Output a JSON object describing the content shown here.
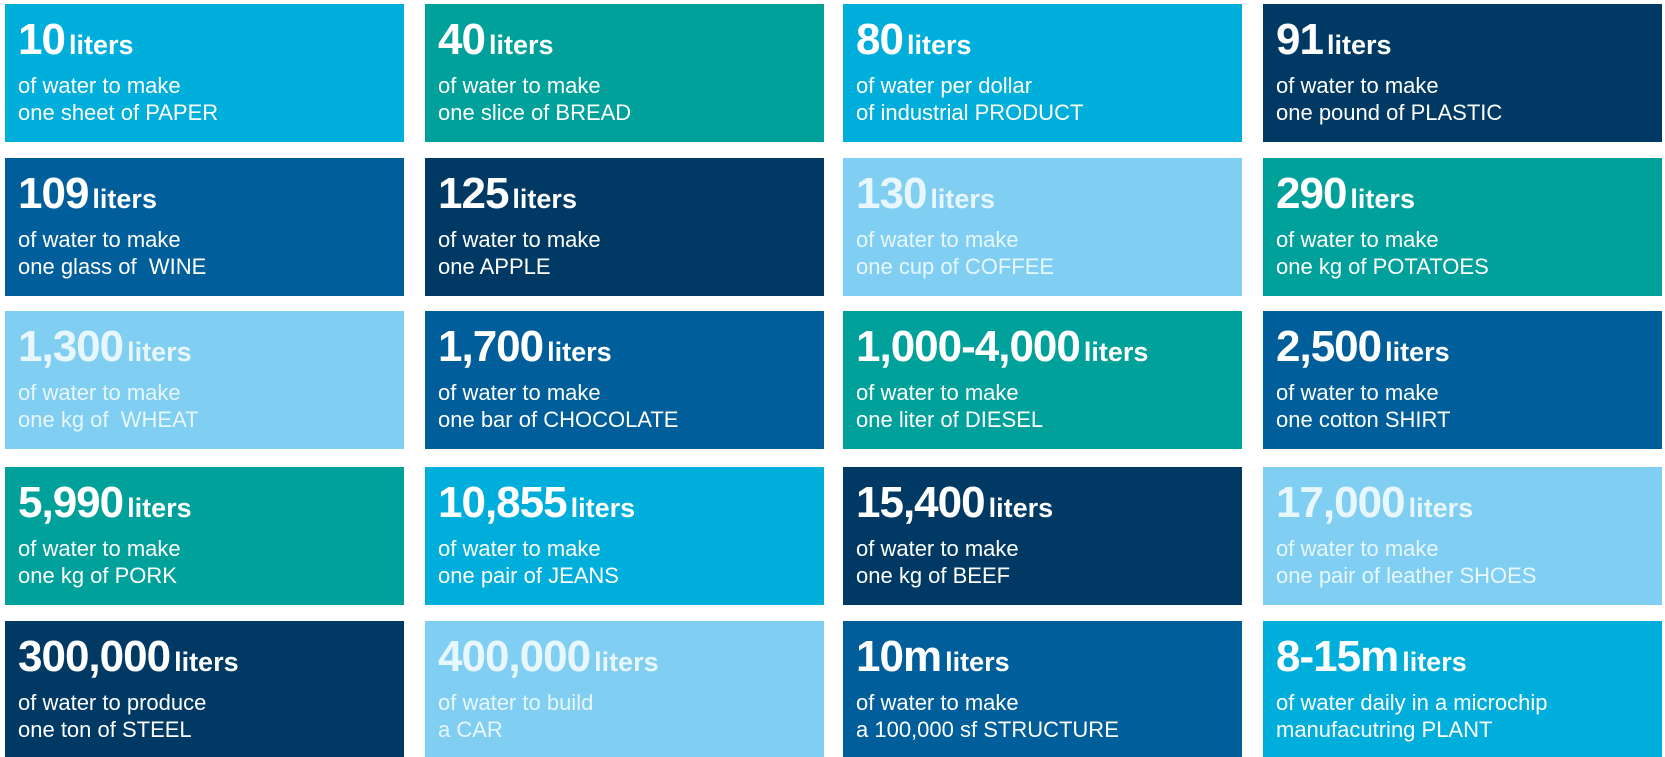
{
  "tiles": [
    {
      "number": "10",
      "unit": "liters",
      "line1": "of water to make",
      "line2": "one sheet of PAPER"
    },
    {
      "number": "40",
      "unit": "liters",
      "line1": "of water to make",
      "line2": "one slice of BREAD"
    },
    {
      "number": "80",
      "unit": "liters",
      "line1": "of water per dollar",
      "line2": "of industrial PRODUCT"
    },
    {
      "number": "91",
      "unit": "liters",
      "line1": "of water to make",
      "line2": "one pound of PLASTIC"
    },
    {
      "number": "109",
      "unit": "liters",
      "line1": "of water to make",
      "line2": "one glass of  WINE"
    },
    {
      "number": "125",
      "unit": "liters",
      "line1": "of water to make",
      "line2": "one APPLE"
    },
    {
      "number": "130",
      "unit": "liters",
      "line1": "of water to make",
      "line2": "one cup of COFFEE"
    },
    {
      "number": "290",
      "unit": "liters",
      "line1": "of water to make",
      "line2": "one kg of POTATOES"
    },
    {
      "number": "1,300",
      "unit": "liters",
      "line1": "of water to make",
      "line2": "one kg of  WHEAT"
    },
    {
      "number": "1,700",
      "unit": "liters",
      "line1": "of water to make",
      "line2": "one bar of CHOCOLATE"
    },
    {
      "number": "1,000-4,000",
      "unit": "liters",
      "line1": "of water to make",
      "line2": "one liter of DIESEL"
    },
    {
      "number": "2,500",
      "unit": "liters",
      "line1": "of water to make",
      "line2": "one cotton SHIRT"
    },
    {
      "number": "5,990",
      "unit": "liters",
      "line1": "of water to make",
      "line2": "one kg of PORK"
    },
    {
      "number": "10,855",
      "unit": "liters",
      "line1": "of water to make",
      "line2": "one pair of JEANS"
    },
    {
      "number": "15,400",
      "unit": "liters",
      "line1": "of water to make",
      "line2": "one kg of BEEF"
    },
    {
      "number": "17,000",
      "unit": "liters",
      "line1": "of water to make",
      "line2": "one pair of leather SHOES"
    },
    {
      "number": "300,000",
      "unit": "liters",
      "line1": "of water to produce",
      "line2": "one ton of STEEL"
    },
    {
      "number": "400,000",
      "unit": "liters",
      "line1": "of water to build",
      "line2": "a CAR"
    },
    {
      "number": "10m",
      "unit": "liters",
      "line1": "of water to make",
      "line2": "a 100,000 sf STRUCTURE"
    },
    {
      "number": "8-15m",
      "unit": "liters",
      "line1": "of water daily in a microchip",
      "line2": "manufacutring PLANT"
    }
  ]
}
